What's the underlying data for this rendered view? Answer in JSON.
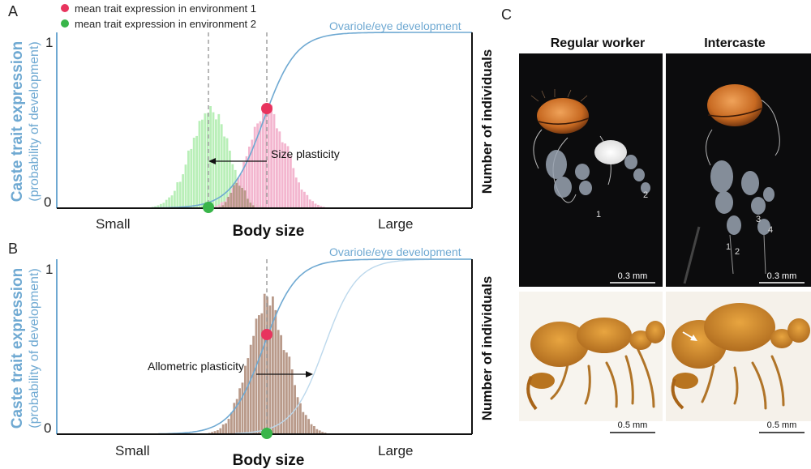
{
  "panels": {
    "a": {
      "letter": "A",
      "legend": [
        {
          "label": "mean trait expression in environment 1",
          "color": "#e8345e"
        },
        {
          "label": "mean trait expression in environment 2",
          "color": "#39b54a"
        }
      ],
      "curve_label": "Ovariole/eye development",
      "y_top_tick": "1",
      "y_bottom_tick": "0",
      "y_title": "Caste trait expression",
      "y_subtitle": "(probability of development)",
      "right_axis_title": "Number of individuals",
      "x_left": "Small",
      "x_title": "Body size",
      "x_right": "Large",
      "annotation": "Size plasticity"
    },
    "b": {
      "letter": "B",
      "curve_label": "Ovariole/eye development",
      "y_top_tick": "1",
      "y_bottom_tick": "0",
      "y_title": "Caste trait expression",
      "y_subtitle": "(probability of development)",
      "right_axis_title": "Number of individuals",
      "x_left": "Small",
      "x_title": "Body size",
      "x_right": "Large",
      "annotation": "Allometric plasticity"
    },
    "c": {
      "letter": "C",
      "col_left_title": "Regular worker",
      "col_right_title": "Intercaste",
      "ovary_labels_left": [
        "1",
        "2"
      ],
      "ovary_labels_right": [
        "1",
        "2",
        "3",
        "4"
      ],
      "scalebar_top": "0.3 mm",
      "scalebar_bottom": "0.5 mm"
    }
  },
  "colors": {
    "curve": "#6fa9d2",
    "curve_light": "#bcd8ec",
    "env1_hist": "#f3b6cf",
    "env2_hist": "#b9efb8",
    "overlap_hist": "#b99a8a",
    "axis_label_blue": "#6fa9d2"
  }
}
